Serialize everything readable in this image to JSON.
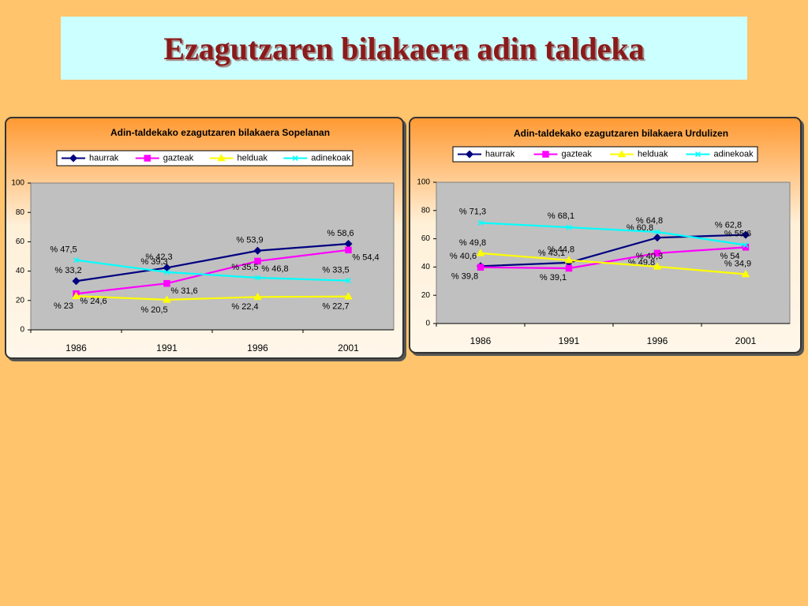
{
  "slide_title": "Ezagutzaren bilakaera adin taldeka",
  "chart_data": [
    {
      "type": "line",
      "title": "Adin-taldekako ezagutzaren bilakaera Sopelanan",
      "categories": [
        "1986",
        "1991",
        "1996",
        "2001"
      ],
      "ylim": [
        0,
        100
      ],
      "yticks": [
        0,
        20,
        40,
        60,
        80,
        100
      ],
      "grid": false,
      "legend": "top",
      "series": [
        {
          "name": "haurrak",
          "color": "#000080",
          "marker": "diamond",
          "values": [
            33.2,
            42.3,
            53.9,
            58.6
          ],
          "value_labels": [
            "% 33,2",
            "% 42,3",
            "% 53,9",
            "% 58,6"
          ]
        },
        {
          "name": "gazteak",
          "color": "#ff00ff",
          "marker": "square",
          "values": [
            24.6,
            31.6,
            46.8,
            54.4
          ],
          "value_labels": [
            "% 24,6",
            "% 31,6",
            "% 46,8",
            "% 54,4"
          ]
        },
        {
          "name": "helduak",
          "color": "#ffff00",
          "marker": "triangle",
          "values": [
            23,
            20.5,
            22.4,
            22.7
          ],
          "value_labels": [
            "% 23",
            "% 20,5",
            "% 22,4",
            "% 22,7"
          ]
        },
        {
          "name": "adinekoak",
          "color": "#00ffff",
          "marker": "x",
          "values": [
            47.5,
            39.3,
            35.5,
            33.5
          ],
          "value_labels": [
            "% 47,5",
            "% 39,3",
            "% 35,5",
            "% 33,5"
          ]
        }
      ]
    },
    {
      "type": "line",
      "title": "Adin-taldekako ezagutzaren bilakaera Urdulizen",
      "categories": [
        "1986",
        "1991",
        "1996",
        "2001"
      ],
      "ylim": [
        0,
        100
      ],
      "yticks": [
        0,
        20,
        40,
        60,
        80,
        100
      ],
      "grid": false,
      "legend": "top",
      "series": [
        {
          "name": "haurrak",
          "color": "#000080",
          "marker": "diamond",
          "values": [
            40.6,
            43.1,
            60.8,
            62.8
          ],
          "value_labels": [
            "% 40,6",
            "% 43,1",
            "% 60,8",
            "% 62,8"
          ]
        },
        {
          "name": "gazteak",
          "color": "#ff00ff",
          "marker": "square",
          "values": [
            39.8,
            39.1,
            49.8,
            54
          ],
          "value_labels": [
            "% 39,8",
            "% 39,1",
            "% 49,8",
            "% 54"
          ]
        },
        {
          "name": "helduak",
          "color": "#ffff00",
          "marker": "triangle",
          "values": [
            49.8,
            44.8,
            40.3,
            34.9
          ],
          "value_labels": [
            "% 49,8",
            "% 44,8",
            "% 40,3",
            "% 34,9"
          ]
        },
        {
          "name": "adinekoak",
          "color": "#00ffff",
          "marker": "x",
          "values": [
            71.3,
            68.1,
            64.8,
            55.6
          ],
          "value_labels": [
            "% 71,3",
            "% 68,1",
            "% 64,8",
            "% 55,6"
          ]
        }
      ]
    }
  ]
}
